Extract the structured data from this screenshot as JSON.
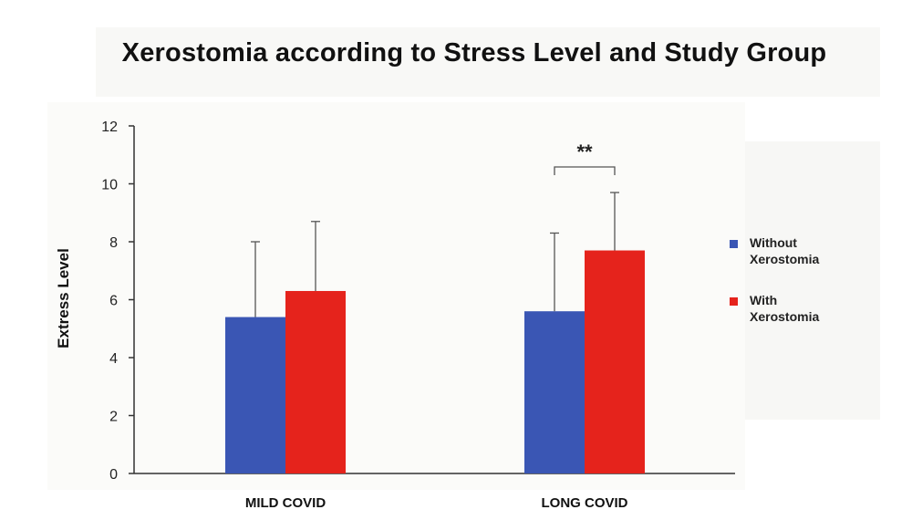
{
  "chart_data": {
    "type": "bar",
    "title": "Xerostomia according to Stress Level and Study Group",
    "xlabel": "",
    "ylabel": "Extress Level",
    "ylim": [
      0,
      12
    ],
    "yticks": [
      "0",
      "2",
      "4",
      "6",
      "8",
      "10",
      "12"
    ],
    "categories": [
      "MILD COVID",
      "LONG COVID"
    ],
    "series": [
      {
        "name": "Without Xerostomia",
        "color": "#3a56b4",
        "values": [
          5.4,
          5.6
        ],
        "error": [
          2.6,
          2.7
        ]
      },
      {
        "name": "With Xerostomia",
        "color": "#e5231c",
        "values": [
          6.3,
          7.7
        ],
        "error": [
          2.4,
          2.0
        ]
      }
    ],
    "annotations": [
      {
        "text": "**",
        "category": "LONG COVID"
      }
    ],
    "grid": false,
    "legend_position": "right"
  }
}
